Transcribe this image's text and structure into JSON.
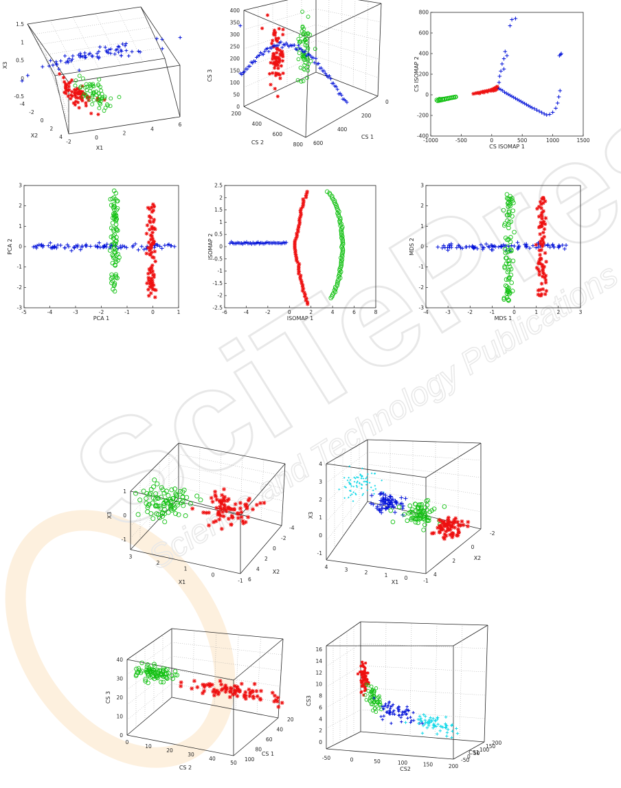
{
  "colors": {
    "blue": "#0010d8",
    "red": "#ee1010",
    "green": "#12c012",
    "cyan": "#10d8e8",
    "watermark": "#e6e6e6"
  },
  "watermark": {
    "brand": "SciTePress",
    "tagline": "Science and Technology Publications"
  },
  "chart_data": [
    {
      "id": "p1",
      "type": "scatter3d",
      "title": "",
      "xlabel": "X1",
      "ylabel": "X2",
      "zlabel": "X3",
      "xticks": [
        "-2",
        "0",
        "2",
        "4",
        "6"
      ],
      "yticks": [
        "-4",
        "-2",
        "0",
        "2",
        "4"
      ],
      "zticks": [
        "-0.5",
        "0",
        "0.5",
        "1",
        "1.5"
      ],
      "series": [
        {
          "color": "blue",
          "marker": "plus",
          "center": [
            2.5,
            -1.0,
            1.0
          ],
          "spread": [
            3.0,
            0.3,
            0.15
          ],
          "n": 70
        },
        {
          "color": "red",
          "marker": "star",
          "center": [
            -1.0,
            0.5,
            -0.3
          ],
          "spread": [
            0.8,
            0.8,
            0.15
          ],
          "n": 70
        },
        {
          "color": "green",
          "marker": "circle",
          "center": [
            0.5,
            -0.5,
            -0.1
          ],
          "spread": [
            0.7,
            0.7,
            0.15
          ],
          "n": 60
        }
      ]
    },
    {
      "id": "p2",
      "type": "scatter3d",
      "title": "",
      "xlabel": "CS 1",
      "ylabel": "CS 2",
      "zlabel": "CS 3",
      "xticks": [
        "0",
        "200",
        "400",
        "600"
      ],
      "yticks": [
        "200",
        "400",
        "600",
        "800"
      ],
      "zticks": [
        "0",
        "50",
        "100",
        "150",
        "200",
        "250",
        "300",
        "350",
        "400"
      ],
      "series": [
        {
          "color": "red",
          "marker": "star",
          "shape": "vertical-column",
          "n": 70
        },
        {
          "color": "green",
          "marker": "circle",
          "shape": "vertical-column",
          "n": 60
        },
        {
          "color": "blue",
          "marker": "plus",
          "shape": "arc",
          "n": 80
        }
      ]
    },
    {
      "id": "p3",
      "type": "scatter",
      "title": "",
      "xlabel": "CS  ISOMAP 1",
      "ylabel": "CS  ISOMAP 2",
      "xlim": [
        -1000,
        1500
      ],
      "ylim": [
        -400,
        800
      ],
      "xticks": [
        "-1000",
        "-500",
        "0",
        "500",
        "1000",
        "1500"
      ],
      "yticks": [
        "-400",
        "-200",
        "0",
        "200",
        "400",
        "600",
        "800"
      ],
      "series": [
        {
          "color": "green",
          "marker": "circle",
          "points": [
            [
              -900,
              -50
            ],
            [
              -870,
              -48
            ],
            [
              -840,
              -45
            ],
            [
              -810,
              -42
            ],
            [
              -780,
              -40
            ],
            [
              -750,
              -37
            ],
            [
              -720,
              -34
            ],
            [
              -690,
              -31
            ],
            [
              -660,
              -28
            ],
            [
              -630,
              -25
            ],
            [
              -600,
              -22
            ],
            [
              -860,
              -55
            ],
            [
              -830,
              -52
            ],
            [
              -800,
              -47
            ],
            [
              -770,
              -44
            ],
            [
              -740,
              -39
            ],
            [
              -710,
              -36
            ],
            [
              -680,
              -30
            ],
            [
              -650,
              -27
            ],
            [
              -620,
              -24
            ],
            [
              -590,
              -20
            ],
            [
              -885,
              -58
            ],
            [
              -855,
              -42
            ]
          ]
        },
        {
          "color": "red",
          "marker": "star",
          "points": [
            [
              -300,
              10
            ],
            [
              -260,
              15
            ],
            [
              -220,
              20
            ],
            [
              -180,
              25
            ],
            [
              -150,
              30
            ],
            [
              -120,
              33
            ],
            [
              -90,
              36
            ],
            [
              -60,
              40
            ],
            [
              -30,
              45
            ],
            [
              0,
              50
            ],
            [
              20,
              55
            ],
            [
              50,
              60
            ],
            [
              70,
              70
            ],
            [
              90,
              80
            ],
            [
              100,
              65
            ],
            [
              60,
              45
            ],
            [
              30,
              40
            ],
            [
              -10,
              38
            ],
            [
              -70,
              30
            ],
            [
              -130,
              22
            ],
            [
              -200,
              14
            ],
            [
              -240,
              18
            ],
            [
              80,
              55
            ],
            [
              40,
              62
            ],
            [
              10,
              48
            ]
          ]
        },
        {
          "color": "blue",
          "marker": "plus",
          "points": [
            [
              120,
              60
            ],
            [
              150,
              50
            ],
            [
              180,
              40
            ],
            [
              210,
              25
            ],
            [
              240,
              15
            ],
            [
              270,
              5
            ],
            [
              300,
              -5
            ],
            [
              330,
              -15
            ],
            [
              360,
              -25
            ],
            [
              390,
              -35
            ],
            [
              420,
              -45
            ],
            [
              450,
              -55
            ],
            [
              480,
              -65
            ],
            [
              510,
              -75
            ],
            [
              540,
              -85
            ],
            [
              570,
              -95
            ],
            [
              600,
              -105
            ],
            [
              630,
              -115
            ],
            [
              660,
              -125
            ],
            [
              700,
              -135
            ],
            [
              740,
              -148
            ],
            [
              780,
              -160
            ],
            [
              820,
              -172
            ],
            [
              860,
              -185
            ],
            [
              900,
              -195
            ],
            [
              950,
              -190
            ],
            [
              1000,
              -170
            ],
            [
              1050,
              -130
            ],
            [
              1080,
              -80
            ],
            [
              1100,
              -20
            ],
            [
              1120,
              40
            ],
            [
              1130,
              390
            ],
            [
              1140,
              400
            ],
            [
              130,
              180
            ],
            [
              150,
              230
            ],
            [
              170,
              300
            ],
            [
              200,
              350
            ],
            [
              220,
              420
            ],
            [
              250,
              380
            ],
            [
              200,
              250
            ],
            [
              120,
              120
            ],
            [
              300,
              670
            ],
            [
              330,
              730
            ],
            [
              390,
              740
            ],
            [
              1110,
              380
            ]
          ]
        }
      ]
    },
    {
      "id": "p4",
      "type": "scatter",
      "title": "",
      "xlabel": "PCA 1",
      "ylabel": "PCA 2",
      "xlim": [
        -5,
        1
      ],
      "ylim": [
        -3,
        3
      ],
      "xticks": [
        "-5",
        "-4",
        "-3",
        "-2",
        "-1",
        "0",
        "1"
      ],
      "yticks": [
        "-3",
        "-2",
        "-1",
        "0",
        "1",
        "2",
        "3"
      ],
      "series": [
        {
          "color": "blue",
          "marker": "plus",
          "shape": "hband",
          "xrange": [
            -4.7,
            0.95
          ],
          "y": 0,
          "spread": 0.08,
          "n": 90
        },
        {
          "color": "green",
          "marker": "circle",
          "shape": "vband",
          "x": -1.5,
          "yrange": [
            -2.3,
            2.8
          ],
          "spread": 0.08,
          "n": 80
        },
        {
          "color": "red",
          "marker": "star",
          "shape": "vband",
          "x": -0.05,
          "yrange": [
            -2.5,
            2.1
          ],
          "spread": 0.08,
          "n": 80
        }
      ]
    },
    {
      "id": "p5",
      "type": "scatter",
      "title": "",
      "xlabel": "ISOMAP 1",
      "ylabel": "ISOMAP 2",
      "xlim": [
        -6,
        8
      ],
      "ylim": [
        -2.5,
        2.5
      ],
      "xticks": [
        "-6",
        "-4",
        "-2",
        "0",
        "2",
        "4",
        "6",
        "8"
      ],
      "yticks": [
        "-2.5",
        "-2",
        "-1.5",
        "-1",
        "-0.5",
        "0",
        "0.5",
        "1",
        "1.5",
        "2",
        "2.5"
      ],
      "series": [
        {
          "color": "blue",
          "marker": "plus",
          "shape": "hline",
          "xrange": [
            -5.5,
            -0.3
          ],
          "y": 0.15,
          "n": 45
        },
        {
          "color": "red",
          "marker": "star",
          "shape": "arc-left",
          "n": 60
        },
        {
          "color": "green",
          "marker": "circle",
          "shape": "arc-right",
          "n": 70
        }
      ]
    },
    {
      "id": "p6",
      "type": "scatter",
      "title": "",
      "xlabel": "MDS 1",
      "ylabel": "MDS 2",
      "xlim": [
        -4,
        3
      ],
      "ylim": [
        -3,
        3
      ],
      "xticks": [
        "-4",
        "-3",
        "-2",
        "-1",
        "0",
        "1",
        "2",
        "3"
      ],
      "yticks": [
        "-3",
        "-2",
        "-1",
        "0",
        "1",
        "2",
        "3"
      ],
      "series": [
        {
          "color": "blue",
          "marker": "plus",
          "shape": "hband",
          "xrange": [
            -3.5,
            2.4
          ],
          "y": 0,
          "spread": 0.07,
          "n": 90
        },
        {
          "color": "green",
          "marker": "circle",
          "shape": "vband",
          "x": -0.25,
          "yrange": [
            -2.8,
            2.6
          ],
          "spread": 0.1,
          "n": 80
        },
        {
          "color": "red",
          "marker": "star",
          "shape": "vband",
          "x": 1.25,
          "yrange": [
            -2.4,
            2.5
          ],
          "spread": 0.1,
          "n": 80
        }
      ]
    },
    {
      "id": "p7",
      "type": "scatter3d",
      "title": "",
      "xlabel": "X1",
      "ylabel": "X2",
      "zlabel": "X3",
      "xticks": [
        "3",
        "2",
        "1",
        "0",
        "-1"
      ],
      "yticks": [
        "-4",
        "-2",
        "0",
        "2",
        "4",
        "6"
      ],
      "zticks": [
        "-1",
        "0",
        "1"
      ],
      "series": [
        {
          "color": "green",
          "marker": "circle",
          "n": 90
        },
        {
          "color": "red",
          "marker": "star",
          "n": 80
        }
      ]
    },
    {
      "id": "p8",
      "type": "scatter3d",
      "title": "",
      "xlabel": "X1",
      "ylabel": "X2",
      "zlabel": "X3",
      "xticks": [
        "4",
        "3",
        "2",
        "1",
        "0",
        "-1"
      ],
      "yticks": [
        "-2",
        "0",
        "2",
        "4"
      ],
      "zticks": [
        "-1",
        "0",
        "1",
        "2",
        "3",
        "4"
      ],
      "series": [
        {
          "color": "cyan",
          "marker": "dot",
          "n": 70
        },
        {
          "color": "blue",
          "marker": "plus",
          "n": 70
        },
        {
          "color": "green",
          "marker": "circle",
          "n": 70
        },
        {
          "color": "red",
          "marker": "star",
          "n": 70
        }
      ]
    },
    {
      "id": "p9",
      "type": "scatter3d",
      "title": "",
      "xlabel": "CS 1",
      "ylabel": "CS 2",
      "zlabel": "CS 3",
      "xticks": [
        "20",
        "40",
        "60",
        "80",
        "100"
      ],
      "yticks": [
        "0",
        "10",
        "20",
        "30",
        "40",
        "50"
      ],
      "zticks": [
        "0",
        "10",
        "20",
        "30",
        "40"
      ],
      "series": [
        {
          "color": "green",
          "marker": "circle",
          "n": 80
        },
        {
          "color": "red",
          "marker": "star",
          "n": 80
        }
      ]
    },
    {
      "id": "p10",
      "type": "scatter3d",
      "title": "",
      "xlabel": "CS1",
      "ylabel": "CS2",
      "zlabel": "CS3",
      "xticks": [
        "-50",
        "0",
        "50",
        "100",
        "150",
        "200"
      ],
      "yticks": [
        "-50",
        "0",
        "50",
        "100",
        "150",
        "200"
      ],
      "zticks": [
        "0",
        "2",
        "4",
        "6",
        "8",
        "10",
        "12",
        "14",
        "16"
      ],
      "series": [
        {
          "color": "red",
          "marker": "star",
          "n": 60
        },
        {
          "color": "green",
          "marker": "circle",
          "n": 50
        },
        {
          "color": "blue",
          "marker": "plus",
          "n": 60
        },
        {
          "color": "cyan",
          "marker": "plus",
          "n": 60
        }
      ]
    }
  ]
}
